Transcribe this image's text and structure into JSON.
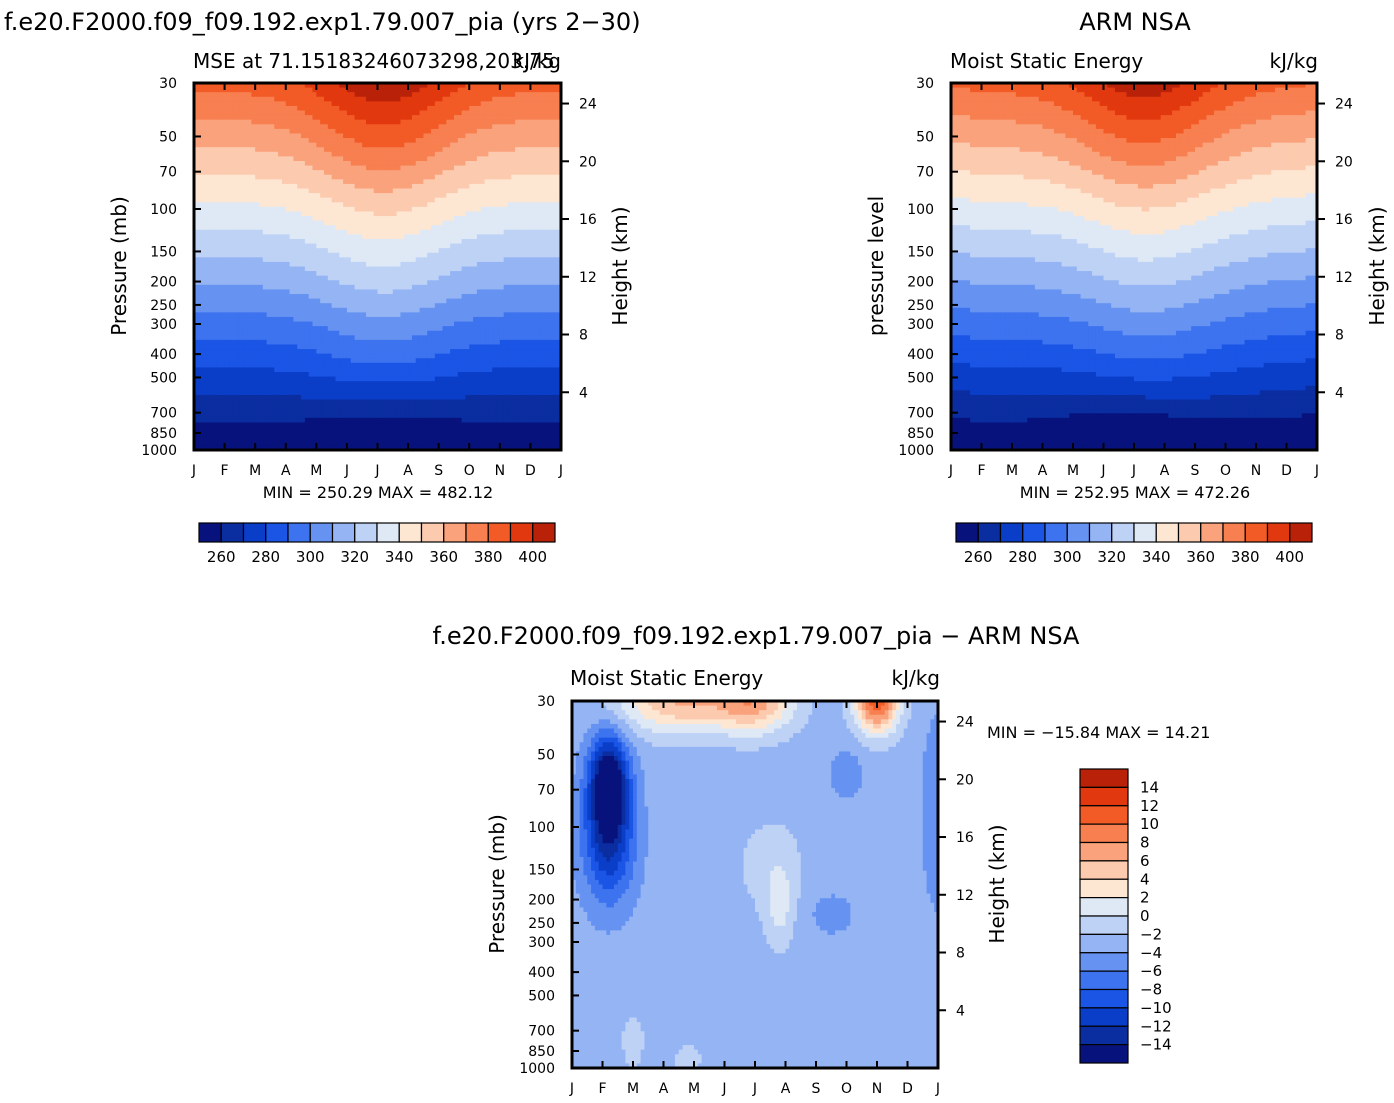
{
  "chart_data": [
    {
      "type": "heatmap",
      "title": "f.e20.F2000.f09_f09.192.exp1.79.007_pia (yrs 2−30)",
      "subtitle_left": "MSE at 71.15183246073298,203.75",
      "subtitle_right": "kJ/kg",
      "ylabel": "Pressure (mb)",
      "y2label": "Height (km)",
      "x_ticks": [
        "J",
        "F",
        "M",
        "A",
        "M",
        "J",
        "J",
        "A",
        "S",
        "O",
        "N",
        "D",
        "J"
      ],
      "y_ticks": [
        30,
        50,
        70,
        100,
        150,
        200,
        250,
        300,
        400,
        500,
        700,
        850,
        1000
      ],
      "y2_ticks": [
        4,
        8,
        12,
        16,
        20,
        24
      ],
      "stats": "MIN =  250.29  MAX =  482.12",
      "min": 250.29,
      "max": 482.12,
      "levels": [
        260,
        270,
        280,
        290,
        300,
        310,
        320,
        330,
        340,
        350,
        360,
        370,
        380,
        390,
        400
      ],
      "colorbar_labels": [
        260,
        280,
        300,
        320,
        340,
        360,
        380,
        400
      ]
    },
    {
      "type": "heatmap",
      "title": "ARM NSA",
      "subtitle_left": "Moist Static Energy",
      "subtitle_right": "kJ/kg",
      "ylabel": "pressure level",
      "y2label": "Height (km)",
      "x_ticks": [
        "J",
        "F",
        "M",
        "A",
        "M",
        "J",
        "J",
        "A",
        "S",
        "O",
        "N",
        "D",
        "J"
      ],
      "y_ticks": [
        30,
        50,
        70,
        100,
        150,
        200,
        250,
        300,
        400,
        500,
        700,
        850,
        1000
      ],
      "y2_ticks": [
        4,
        8,
        12,
        16,
        20,
        24
      ],
      "stats": "MIN =  252.95  MAX =  472.26",
      "min": 252.95,
      "max": 472.26,
      "levels": [
        260,
        270,
        280,
        290,
        300,
        310,
        320,
        330,
        340,
        350,
        360,
        370,
        380,
        390,
        400
      ],
      "colorbar_labels": [
        260,
        280,
        300,
        320,
        340,
        360,
        380,
        400
      ]
    },
    {
      "type": "heatmap",
      "title": "f.e20.F2000.f09_f09.192.exp1.79.007_pia − ARM NSA",
      "subtitle_left": "Moist Static Energy",
      "subtitle_right": "kJ/kg",
      "ylabel": "Pressure (mb)",
      "y2label": "Height (km)",
      "x_ticks": [
        "J",
        "F",
        "M",
        "A",
        "M",
        "J",
        "J",
        "A",
        "S",
        "O",
        "N",
        "D",
        "J"
      ],
      "y_ticks": [
        30,
        50,
        70,
        100,
        150,
        200,
        250,
        300,
        400,
        500,
        700,
        850,
        1000
      ],
      "y2_ticks": [
        4,
        8,
        12,
        16,
        20,
        24
      ],
      "stats": "MIN = −15.84  MAX =   14.21",
      "min": -15.84,
      "max": 14.21,
      "levels": [
        -14,
        -12,
        -10,
        -8,
        -6,
        -4,
        -2,
        0,
        2,
        4,
        6,
        8,
        10,
        12,
        14
      ],
      "colorbar_labels": [
        "14",
        "12",
        "10",
        "8",
        "6",
        "4",
        "2",
        "0",
        "−2",
        "−4",
        "−6",
        "−8",
        "−10",
        "−12",
        "−14"
      ]
    }
  ],
  "colors": {
    "palette": [
      "#08127c",
      "#0a2da0",
      "#0b3ec8",
      "#1a55e6",
      "#3d73ef",
      "#6693f1",
      "#95b4f4",
      "#bed2f6",
      "#dfe9f6",
      "#fde6d2",
      "#fccbaf",
      "#f9a27c",
      "#f77f50",
      "#f25a26",
      "#e2380f",
      "#b92208",
      "#8d0402"
    ]
  }
}
